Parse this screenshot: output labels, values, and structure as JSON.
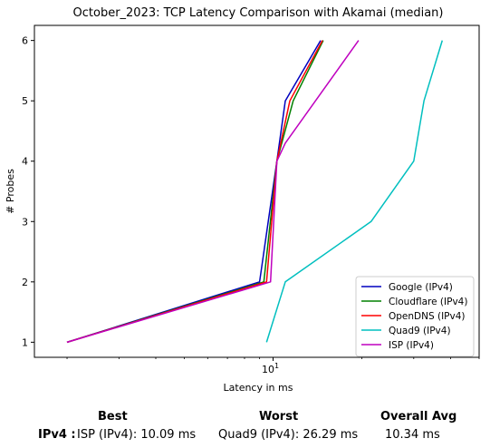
{
  "chart_data": {
    "type": "line",
    "title": "October_2023: TCP Latency Comparison with Akamai (median)",
    "xlabel": "Latency in ms",
    "ylabel": "# Probes",
    "xscale": "log",
    "xlim": [
      1.55,
      50
    ],
    "ylim": [
      0.75,
      6.25
    ],
    "xticks": [
      {
        "value": 10,
        "label": "10^1"
      }
    ],
    "yticks": [
      1,
      2,
      3,
      4,
      5,
      6
    ],
    "grid": false,
    "legend_position": "lower-right",
    "series": [
      {
        "name": "Google (IPv4)",
        "color": "#0000bf",
        "points": [
          [
            2.0,
            1
          ],
          [
            9.0,
            2
          ],
          [
            10.3,
            4
          ],
          [
            11.0,
            5
          ],
          [
            14.5,
            6
          ]
        ]
      },
      {
        "name": "Cloudflare (IPv4)",
        "color": "#008000",
        "points": [
          [
            2.0,
            1
          ],
          [
            9.3,
            2
          ],
          [
            10.3,
            4
          ],
          [
            11.7,
            5
          ],
          [
            14.8,
            6
          ]
        ]
      },
      {
        "name": "OpenDNS (IPv4)",
        "color": "#ff0000",
        "points": [
          [
            2.0,
            1
          ],
          [
            9.5,
            2
          ],
          [
            10.3,
            4
          ],
          [
            11.4,
            5
          ],
          [
            14.7,
            6
          ]
        ]
      },
      {
        "name": "Quad9 (IPv4)",
        "color": "#00bfbf",
        "points": [
          [
            9.5,
            1
          ],
          [
            11.0,
            2
          ],
          [
            21.5,
            3
          ],
          [
            30.0,
            4
          ],
          [
            32.5,
            5
          ],
          [
            37.5,
            6
          ]
        ]
      },
      {
        "name": "ISP (IPv4)",
        "color": "#bf00bf",
        "points": [
          [
            2.0,
            1
          ],
          [
            9.8,
            2
          ],
          [
            10.3,
            4
          ],
          [
            11.0,
            4.3
          ],
          [
            19.5,
            6
          ]
        ]
      }
    ]
  },
  "summary": {
    "best_header": "Best",
    "worst_header": "Worst",
    "avg_header": "Overall Avg",
    "row_label": "IPv4 :",
    "best_value": "ISP (IPv4): 10.09 ms",
    "worst_value": "Quad9 (IPv4): 26.29 ms",
    "avg_value": "10.34 ms"
  }
}
